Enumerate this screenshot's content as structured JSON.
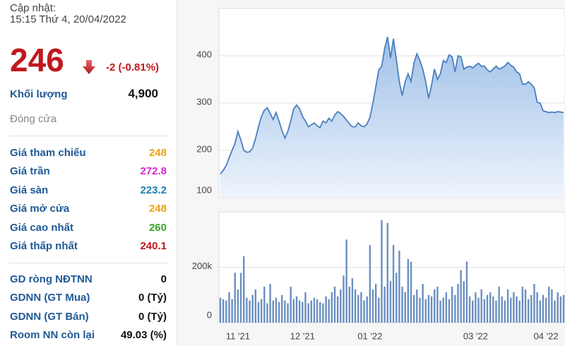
{
  "panel": {
    "update_label": "Cập nhật:",
    "update_time": "15:15 Thứ 4, 20/04/2022",
    "price": 246,
    "change": "-2 (-0.81%)",
    "volume_label": "Khối lượng",
    "volume": "4,900",
    "status": "Đóng cửa",
    "prices": [
      {
        "label": "Giá tham chiếu",
        "value": 248,
        "color": "#e8a317"
      },
      {
        "label": "Giá trần",
        "value": 272.8,
        "color": "#d42ad4"
      },
      {
        "label": "Giá sàn",
        "value": 223.2,
        "color": "#1f7fa8"
      },
      {
        "label": "Giá mở cửa",
        "value": 248,
        "color": "#e8a317"
      },
      {
        "label": "Giá cao nhất",
        "value": 260,
        "color": "#3aa02a"
      },
      {
        "label": "Giá thấp nhất",
        "value": 240.1,
        "color": "#c0181e"
      }
    ],
    "foreign": [
      {
        "label": "GD ròng NĐTNN",
        "value": 0
      },
      {
        "label": "GDNN (GT Mua)",
        "value": "0 (Tỷ)"
      },
      {
        "label": "GDNN (GT Bán)",
        "value": "0 (Tỷ)"
      },
      {
        "label": "Room NN còn lại",
        "value": "49.03 (%)"
      }
    ]
  },
  "chart_data": [
    {
      "type": "area",
      "color": "#4a7fc1",
      "fill": "#a9c8ec",
      "grid": true,
      "ylim": [
        100,
        500
      ],
      "yticks": [
        100,
        200,
        300,
        400
      ],
      "values": [
        150,
        158,
        168,
        185,
        200,
        215,
        240,
        222,
        200,
        196,
        197,
        205,
        225,
        250,
        272,
        285,
        290,
        278,
        265,
        280,
        262,
        242,
        226,
        240,
        262,
        288,
        296,
        288,
        272,
        262,
        250,
        254,
        258,
        252,
        248,
        262,
        258,
        268,
        262,
        275,
        282,
        278,
        272,
        264,
        256,
        250,
        250,
        258,
        252,
        250,
        256,
        270,
        300,
        335,
        370,
        378,
        415,
        440,
        395,
        436,
        392,
        345,
        316,
        345,
        362,
        346,
        385,
        404,
        390,
        372,
        345,
        310,
        338,
        372,
        350,
        362,
        390,
        386,
        402,
        398,
        366,
        400,
        398,
        372,
        376,
        378,
        374,
        380,
        384,
        378,
        378,
        370,
        366,
        372,
        378,
        372,
        375,
        378,
        386,
        380,
        376,
        366,
        362,
        340,
        340,
        345,
        340,
        332,
        302,
        300,
        284,
        282,
        280,
        281,
        280,
        282,
        281,
        280
      ]
    },
    {
      "type": "bar",
      "color": "#6a8fc0",
      "grid": true,
      "ylim": [
        0,
        400000
      ],
      "yticks": [
        0,
        {
          "value": 200000,
          "label": "200k"
        }
      ],
      "categories": [
        null,
        null,
        null,
        null,
        null,
        null,
        "11 '21",
        null,
        null,
        null,
        null,
        null,
        null,
        null,
        null,
        null,
        null,
        null,
        null,
        null,
        null,
        null,
        null,
        null,
        null,
        null,
        null,
        null,
        "12 '21",
        null,
        null,
        null,
        null,
        null,
        null,
        null,
        null,
        null,
        null,
        null,
        null,
        null,
        null,
        null,
        null,
        null,
        null,
        null,
        null,
        null,
        null,
        "01 '22",
        null,
        null,
        null,
        null,
        null,
        null,
        null,
        null,
        null,
        null,
        null,
        null,
        null,
        null,
        null,
        null,
        null,
        null,
        null,
        null,
        null,
        null,
        null,
        null,
        null,
        null,
        null,
        null,
        null,
        null,
        null,
        null,
        null,
        null,
        null,
        "03 '22",
        null,
        null,
        null,
        null,
        null,
        null,
        null,
        null,
        null,
        null,
        null,
        null,
        null,
        null,
        null,
        null,
        null,
        null,
        null,
        null,
        null,
        null,
        null,
        "04 '22",
        null,
        null,
        null,
        null,
        null,
        null
      ],
      "values": [
        90000,
        85000,
        80000,
        110000,
        85000,
        180000,
        120000,
        180000,
        240000,
        90000,
        80000,
        100000,
        120000,
        75000,
        85000,
        130000,
        70000,
        140000,
        80000,
        90000,
        75000,
        100000,
        80000,
        70000,
        130000,
        85000,
        95000,
        80000,
        75000,
        110000,
        70000,
        80000,
        90000,
        85000,
        75000,
        70000,
        95000,
        85000,
        110000,
        130000,
        95000,
        120000,
        170000,
        300000,
        130000,
        160000,
        120000,
        100000,
        110000,
        80000,
        95000,
        280000,
        120000,
        140000,
        90000,
        370000,
        130000,
        360000,
        150000,
        280000,
        180000,
        260000,
        130000,
        110000,
        230000,
        220000,
        100000,
        120000,
        90000,
        140000,
        85000,
        100000,
        95000,
        120000,
        130000,
        80000,
        90000,
        110000,
        85000,
        130000,
        100000,
        140000,
        190000,
        150000,
        220000,
        95000,
        80000,
        110000,
        90000,
        120000,
        85000,
        100000,
        110000,
        95000,
        80000,
        130000,
        95000,
        80000,
        120000,
        90000,
        110000,
        95000,
        80000,
        130000,
        120000,
        85000,
        100000,
        140000,
        110000,
        80000,
        100000,
        90000,
        130000,
        120000,
        80000,
        110000,
        95000,
        100000
      ]
    }
  ]
}
